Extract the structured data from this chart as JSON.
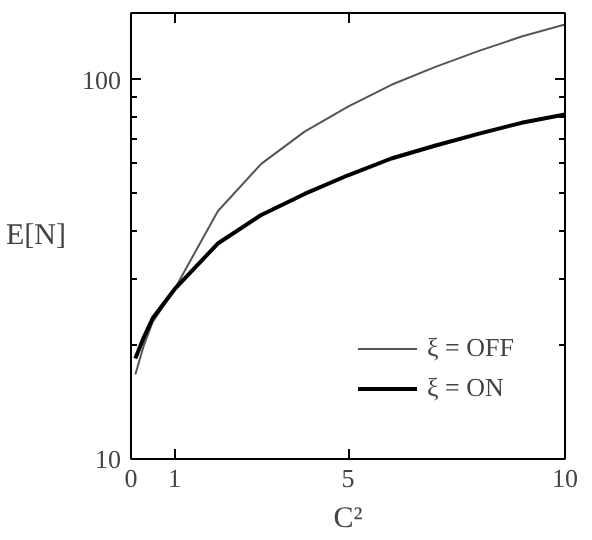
{
  "chart_data": {
    "type": "line",
    "xlabel": "C²",
    "ylabel": "E[N]",
    "xlim": [
      0,
      10
    ],
    "xticks": [
      0,
      1,
      5,
      10
    ],
    "ylim": [
      10,
      150
    ],
    "yticks": [
      10,
      100
    ],
    "log": "y",
    "grid": false,
    "legend": "bottom right",
    "series": [
      {
        "name": "ξ = OFF",
        "color": "#555555",
        "x": [
          0.1,
          0.3,
          0.5,
          1,
          2,
          3,
          4,
          5,
          6,
          7,
          8,
          9,
          10
        ],
        "values": [
          16.7,
          20,
          23,
          28,
          45,
          60,
          73,
          85,
          97,
          108,
          119,
          130,
          140
        ]
      },
      {
        "name": "ξ = ON",
        "color": "#000000",
        "x": [
          0.1,
          0.3,
          0.5,
          1,
          2,
          3,
          4,
          5,
          6,
          7,
          8,
          9,
          10
        ],
        "values": [
          18.4,
          21,
          23.5,
          28,
          37,
          44,
          50,
          56,
          62,
          67,
          72,
          77,
          81
        ]
      }
    ]
  }
}
